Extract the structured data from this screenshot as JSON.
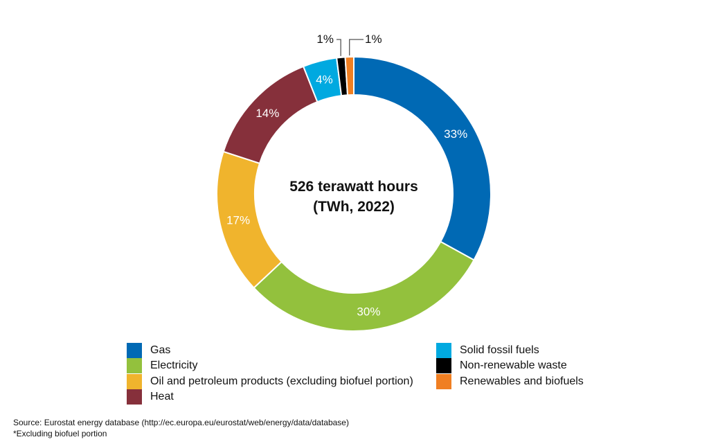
{
  "chart_data": {
    "type": "pie",
    "donut": true,
    "center_text": [
      "526 terawatt hours",
      "(TWh, 2022)"
    ],
    "slices": [
      {
        "name": "Gas",
        "value": 33,
        "label": "33%",
        "color": "#0069b4"
      },
      {
        "name": "Electricity",
        "value": 30,
        "label": "30%",
        "color": "#93c13d"
      },
      {
        "name": "Oil and petroleum products (excluding biofuel portion)",
        "value": 17,
        "label": "17%",
        "color": "#f0b42d"
      },
      {
        "name": "Heat",
        "value": 14,
        "label": "14%",
        "color": "#86303b"
      },
      {
        "name": "Solid fossil fuels",
        "value": 4,
        "label": "4%",
        "color": "#00a9e0"
      },
      {
        "name": "Non-renewable waste",
        "value": 1,
        "label": "1%",
        "color": "#000000"
      },
      {
        "name": "Renewables and biofuels",
        "value": 1,
        "label": "1%",
        "color": "#f07f22"
      }
    ],
    "legend_placement": "bottom"
  },
  "footer": {
    "source": "Source: Eurostat energy database (http://ec.europa.eu/eurostat/web/energy/data/database)",
    "note": "*Excluding biofuel portion"
  }
}
